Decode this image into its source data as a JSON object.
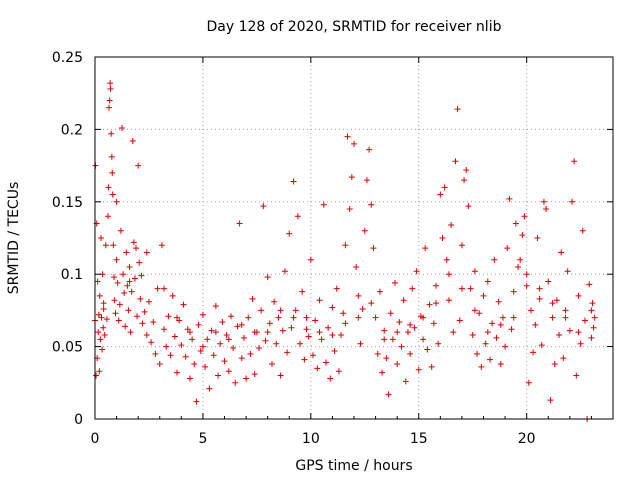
{
  "chart_data": {
    "type": "scatter",
    "title": "Day 128 of 2020, SRMTID for receiver nlib",
    "xlabel": "GPS time / hours",
    "ylabel": "SRMTID / TECUs",
    "xlim": [
      0,
      24
    ],
    "ylim": [
      0,
      0.25
    ],
    "x_ticks": [
      0,
      5,
      10,
      15,
      20
    ],
    "x_tick_labels": [
      "0",
      "5",
      "10",
      "15",
      "20"
    ],
    "y_ticks": [
      0,
      0.05,
      0.1,
      0.15,
      0.2,
      0.25
    ],
    "y_tick_labels": [
      "0",
      "0.05",
      "0.1",
      "0.15",
      "0.2",
      "0.25"
    ],
    "grid": true,
    "marker": "+",
    "color": "#e00000",
    "series": [
      {
        "name": "",
        "points": [
          [
            0.0,
            0.068
          ],
          [
            0.02,
            0.175
          ],
          [
            0.05,
            0.03
          ],
          [
            0.08,
            0.135
          ],
          [
            0.1,
            0.042
          ],
          [
            0.12,
            0.095
          ],
          [
            0.15,
            0.06
          ],
          [
            0.18,
            0.072
          ],
          [
            0.2,
            0.033
          ],
          [
            0.22,
            0.085
          ],
          [
            0.25,
            0.055
          ],
          [
            0.28,
            0.125
          ],
          [
            0.3,
            0.07
          ],
          [
            0.33,
            0.048
          ],
          [
            0.35,
            0.1
          ],
          [
            0.38,
            0.063
          ],
          [
            0.4,
            0.076
          ],
          [
            0.45,
            0.058
          ],
          [
            0.5,
            0.12
          ],
          [
            0.55,
            0.069
          ],
          [
            0.6,
            0.14
          ],
          [
            0.62,
            0.16
          ],
          [
            0.65,
            0.215
          ],
          [
            0.68,
            0.22
          ],
          [
            0.7,
            0.232
          ],
          [
            0.72,
            0.228
          ],
          [
            0.75,
            0.197
          ],
          [
            0.78,
            0.181
          ],
          [
            0.8,
            0.17
          ],
          [
            0.82,
            0.155
          ],
          [
            0.85,
            0.12
          ],
          [
            0.88,
            0.098
          ],
          [
            0.9,
            0.082
          ],
          [
            0.95,
            0.073
          ],
          [
            1.0,
            0.11
          ],
          [
            1.05,
            0.094
          ],
          [
            1.1,
            0.068
          ],
          [
            1.15,
            0.079
          ],
          [
            1.2,
            0.13
          ],
          [
            1.25,
            0.201
          ],
          [
            1.3,
            0.1
          ],
          [
            1.35,
            0.087
          ],
          [
            1.4,
            0.064
          ],
          [
            1.45,
            0.115
          ],
          [
            1.5,
            0.092
          ],
          [
            1.55,
            0.075
          ],
          [
            1.6,
            0.105
          ],
          [
            1.65,
            0.06
          ],
          [
            1.7,
            0.088
          ],
          [
            1.75,
            0.192
          ],
          [
            1.8,
            0.122
          ],
          [
            1.85,
            0.097
          ],
          [
            1.9,
            0.118
          ],
          [
            1.95,
            0.071
          ],
          [
            2.0,
            0.175
          ],
          [
            2.05,
            0.108
          ],
          [
            2.1,
            0.083
          ],
          [
            2.15,
            0.099
          ],
          [
            2.2,
            0.066
          ],
          [
            2.3,
            0.074
          ],
          [
            2.4,
            0.058
          ],
          [
            2.5,
            0.081
          ],
          [
            2.6,
            0.053
          ],
          [
            2.7,
            0.067
          ],
          [
            2.8,
            0.045
          ],
          [
            2.9,
            0.09
          ],
          [
            3.0,
            0.038
          ],
          [
            3.1,
            0.12
          ],
          [
            3.2,
            0.062
          ],
          [
            3.3,
            0.05
          ],
          [
            3.4,
            0.071
          ],
          [
            3.5,
            0.044
          ],
          [
            3.6,
            0.085
          ],
          [
            3.7,
            0.057
          ],
          [
            3.8,
            0.032
          ],
          [
            3.9,
            0.068
          ],
          [
            4.0,
            0.051
          ],
          [
            4.1,
            0.079
          ],
          [
            4.2,
            0.043
          ],
          [
            4.3,
            0.062
          ],
          [
            4.4,
            0.028
          ],
          [
            4.5,
            0.055
          ],
          [
            4.6,
            0.038
          ],
          [
            4.7,
            0.012
          ],
          [
            4.8,
            0.065
          ],
          [
            4.9,
            0.047
          ],
          [
            5.0,
            0.072
          ],
          [
            5.1,
            0.036
          ],
          [
            5.2,
            0.055
          ],
          [
            5.3,
            0.021
          ],
          [
            5.4,
            0.061
          ],
          [
            5.5,
            0.044
          ],
          [
            5.6,
            0.078
          ],
          [
            5.7,
            0.03
          ],
          [
            5.8,
            0.052
          ],
          [
            5.9,
            0.067
          ],
          [
            6.0,
            0.04
          ],
          [
            6.1,
            0.058
          ],
          [
            6.2,
            0.033
          ],
          [
            6.3,
            0.071
          ],
          [
            6.4,
            0.049
          ],
          [
            6.5,
            0.025
          ],
          [
            6.6,
            0.064
          ],
          [
            6.7,
            0.135
          ],
          [
            6.8,
            0.042
          ],
          [
            6.9,
            0.056
          ],
          [
            7.0,
            0.028
          ],
          [
            7.1,
            0.07
          ],
          [
            7.2,
            0.045
          ],
          [
            7.3,
            0.083
          ],
          [
            7.4,
            0.031
          ],
          [
            7.5,
            0.06
          ],
          [
            7.6,
            0.049
          ],
          [
            7.7,
            0.075
          ],
          [
            7.8,
            0.147
          ],
          [
            7.9,
            0.054
          ],
          [
            8.0,
            0.098
          ],
          [
            8.1,
            0.066
          ],
          [
            8.2,
            0.038
          ],
          [
            8.3,
            0.081
          ],
          [
            8.4,
            0.052
          ],
          [
            8.5,
            0.07
          ],
          [
            8.6,
            0.03
          ],
          [
            8.7,
            0.061
          ],
          [
            8.8,
            0.102
          ],
          [
            8.9,
            0.046
          ],
          [
            9.0,
            0.128
          ],
          [
            9.1,
            0.063
          ],
          [
            9.2,
            0.164
          ],
          [
            9.3,
            0.075
          ],
          [
            9.4,
            0.14
          ],
          [
            9.5,
            0.052
          ],
          [
            9.6,
            0.088
          ],
          [
            9.7,
            0.041
          ],
          [
            9.8,
            0.07
          ],
          [
            9.9,
            0.057
          ],
          [
            10.0,
            0.11
          ],
          [
            10.1,
            0.044
          ],
          [
            10.2,
            0.068
          ],
          [
            10.3,
            0.035
          ],
          [
            10.4,
            0.082
          ],
          [
            10.5,
            0.055
          ],
          [
            10.6,
            0.148
          ],
          [
            10.7,
            0.039
          ],
          [
            10.8,
            0.063
          ],
          [
            10.9,
            0.028
          ],
          [
            11.0,
            0.077
          ],
          [
            11.1,
            0.047
          ],
          [
            11.2,
            0.09
          ],
          [
            11.3,
            0.033
          ],
          [
            11.4,
            0.058
          ],
          [
            11.5,
            0.073
          ],
          [
            11.6,
            0.12
          ],
          [
            11.7,
            0.195
          ],
          [
            11.8,
            0.145
          ],
          [
            11.9,
            0.167
          ],
          [
            12.0,
            0.19
          ],
          [
            12.1,
            0.105
          ],
          [
            12.2,
            0.085
          ],
          [
            12.3,
            0.052
          ],
          [
            12.4,
            0.076
          ],
          [
            12.5,
            0.13
          ],
          [
            12.6,
            0.165
          ],
          [
            12.7,
            0.186
          ],
          [
            12.8,
            0.148
          ],
          [
            12.9,
            0.118
          ],
          [
            13.0,
            0.07
          ],
          [
            13.1,
            0.045
          ],
          [
            13.2,
            0.088
          ],
          [
            13.3,
            0.032
          ],
          [
            13.4,
            0.061
          ],
          [
            13.5,
            0.042
          ],
          [
            13.6,
            0.017
          ],
          [
            13.7,
            0.073
          ],
          [
            13.8,
            0.055
          ],
          [
            13.9,
            0.094
          ],
          [
            14.0,
            0.038
          ],
          [
            14.1,
            0.067
          ],
          [
            14.2,
            0.05
          ],
          [
            14.3,
            0.082
          ],
          [
            14.4,
            0.026
          ],
          [
            14.5,
            0.06
          ],
          [
            14.6,
            0.045
          ],
          [
            14.7,
            0.09
          ],
          [
            14.8,
            0.063
          ],
          [
            14.9,
            0.102
          ],
          [
            15.0,
            0.034
          ],
          [
            15.1,
            0.071
          ],
          [
            15.2,
            0.055
          ],
          [
            15.3,
            0.118
          ],
          [
            15.4,
            0.048
          ],
          [
            15.5,
            0.079
          ],
          [
            15.6,
            0.036
          ],
          [
            15.7,
            0.066
          ],
          [
            15.8,
            0.092
          ],
          [
            15.9,
            0.052
          ],
          [
            16.0,
            0.155
          ],
          [
            16.1,
            0.125
          ],
          [
            16.2,
            0.16
          ],
          [
            16.3,
            0.11
          ],
          [
            16.4,
            0.082
          ],
          [
            16.5,
            0.134
          ],
          [
            16.6,
            0.06
          ],
          [
            16.7,
            0.178
          ],
          [
            16.8,
            0.214
          ],
          [
            16.9,
            0.068
          ],
          [
            17.0,
            0.12
          ],
          [
            17.1,
            0.165
          ],
          [
            17.2,
            0.172
          ],
          [
            17.3,
            0.147
          ],
          [
            17.4,
            0.09
          ],
          [
            17.5,
            0.058
          ],
          [
            17.6,
            0.102
          ],
          [
            17.7,
            0.045
          ],
          [
            17.8,
            0.073
          ],
          [
            17.9,
            0.036
          ],
          [
            18.0,
            0.085
          ],
          [
            18.1,
            0.052
          ],
          [
            18.2,
            0.095
          ],
          [
            18.3,
            0.041
          ],
          [
            18.4,
            0.066
          ],
          [
            18.5,
            0.11
          ],
          [
            18.6,
            0.056
          ],
          [
            18.7,
            0.081
          ],
          [
            18.8,
            0.038
          ],
          [
            18.9,
            0.07
          ],
          [
            19.0,
            0.05
          ],
          [
            19.1,
            0.118
          ],
          [
            19.2,
            0.152
          ],
          [
            19.3,
            0.062
          ],
          [
            19.4,
            0.088
          ],
          [
            19.5,
            0.135
          ],
          [
            19.6,
            0.105
          ],
          [
            19.7,
            0.11
          ],
          [
            19.8,
            0.127
          ],
          [
            19.9,
            0.14
          ],
          [
            20.0,
            0.092
          ],
          [
            20.1,
            0.025
          ],
          [
            20.2,
            0.075
          ],
          [
            20.3,
            0.046
          ],
          [
            20.4,
            0.065
          ],
          [
            20.5,
            0.125
          ],
          [
            20.6,
            0.083
          ],
          [
            20.7,
            0.051
          ],
          [
            20.8,
            0.15
          ],
          [
            20.9,
            0.145
          ],
          [
            21.0,
            0.095
          ],
          [
            21.1,
            0.013
          ],
          [
            21.2,
            0.07
          ],
          [
            21.3,
            0.038
          ],
          [
            21.4,
            0.082
          ],
          [
            21.5,
            0.058
          ],
          [
            21.6,
            0.115
          ],
          [
            21.7,
            0.042
          ],
          [
            21.8,
            0.075
          ],
          [
            21.9,
            0.102
          ],
          [
            22.0,
            0.061
          ],
          [
            22.1,
            0.15
          ],
          [
            22.2,
            0.178
          ],
          [
            22.3,
            0.03
          ],
          [
            22.4,
            0.085
          ],
          [
            22.5,
            0.052
          ],
          [
            22.6,
            0.13
          ],
          [
            22.7,
            0.068
          ],
          [
            22.8,
            0.0
          ],
          [
            22.9,
            0.093
          ],
          [
            23.0,
            0.056
          ],
          [
            23.05,
            0.08
          ],
          [
            23.1,
            0.063
          ],
          [
            23.15,
            0.07
          ],
          [
            0.4,
            0.08
          ],
          [
            1.0,
            0.15
          ],
          [
            1.6,
            0.095
          ],
          [
            2.4,
            0.115
          ],
          [
            3.2,
            0.09
          ],
          [
            3.8,
            0.07
          ],
          [
            4.4,
            0.06
          ],
          [
            5.0,
            0.05
          ],
          [
            5.6,
            0.06
          ],
          [
            6.2,
            0.055
          ],
          [
            6.8,
            0.065
          ],
          [
            7.4,
            0.06
          ],
          [
            8.0,
            0.06
          ],
          [
            8.6,
            0.075
          ],
          [
            9.2,
            0.07
          ],
          [
            9.8,
            0.062
          ],
          [
            10.4,
            0.06
          ],
          [
            11.0,
            0.058
          ],
          [
            11.6,
            0.066
          ],
          [
            12.2,
            0.07
          ],
          [
            12.8,
            0.08
          ],
          [
            13.4,
            0.055
          ],
          [
            14.0,
            0.06
          ],
          [
            14.6,
            0.065
          ],
          [
            15.2,
            0.07
          ],
          [
            15.8,
            0.08
          ],
          [
            16.4,
            0.1
          ],
          [
            17.0,
            0.09
          ],
          [
            17.6,
            0.075
          ],
          [
            18.2,
            0.06
          ],
          [
            18.8,
            0.065
          ],
          [
            19.4,
            0.07
          ],
          [
            20.0,
            0.1
          ],
          [
            20.6,
            0.09
          ],
          [
            21.2,
            0.08
          ],
          [
            21.8,
            0.07
          ],
          [
            22.4,
            0.06
          ],
          [
            23.0,
            0.075
          ]
        ]
      }
    ]
  }
}
